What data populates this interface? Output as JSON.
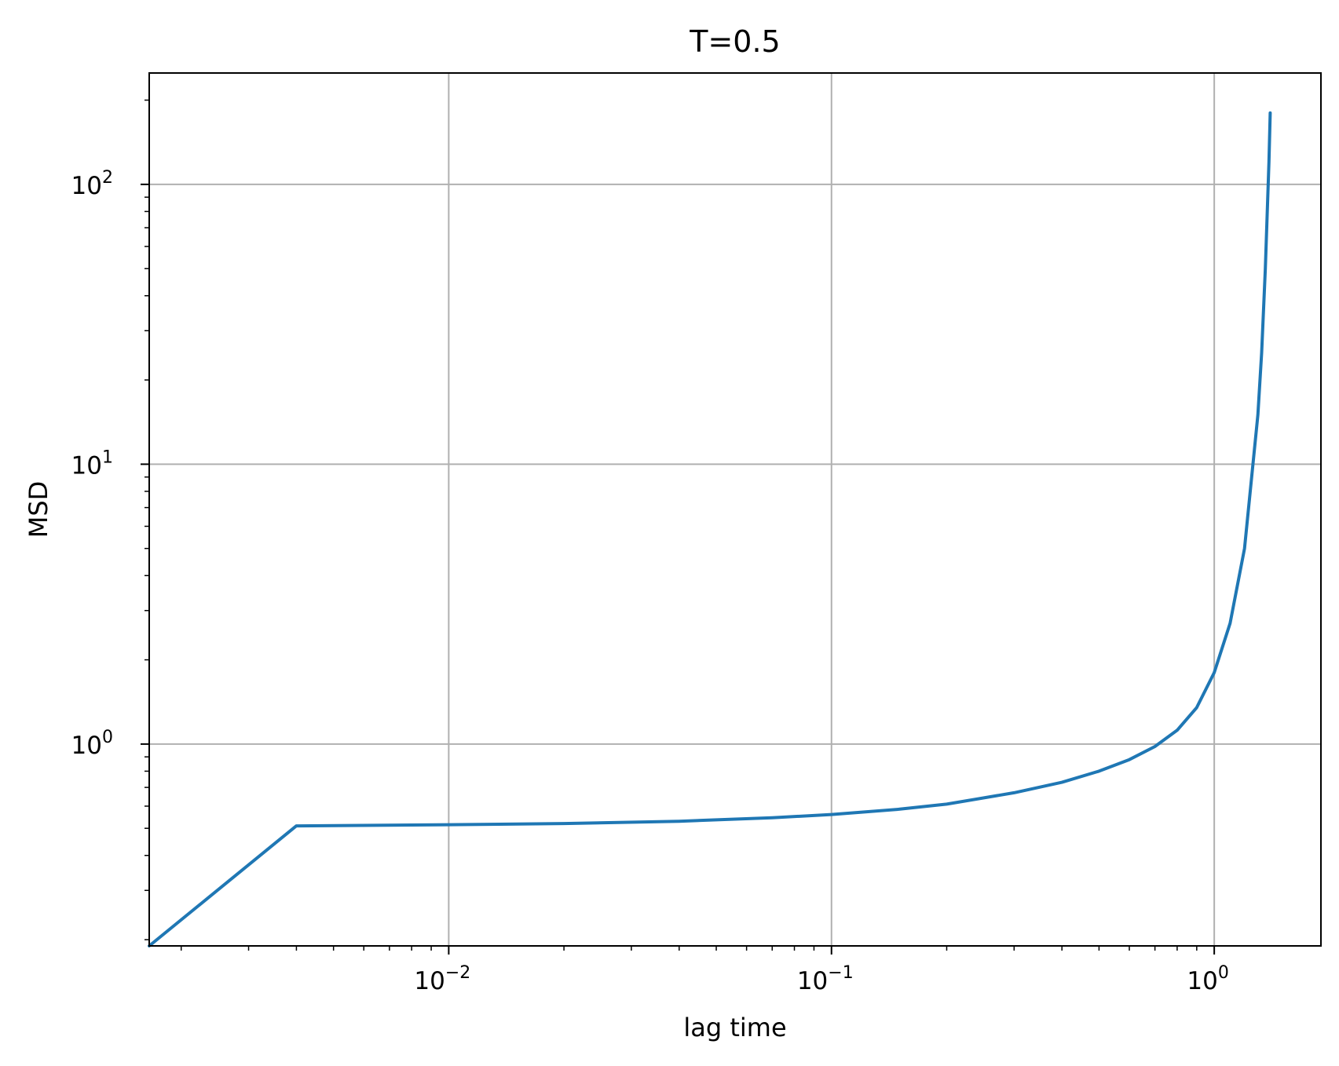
{
  "chart_data": {
    "type": "line",
    "title": "T=0.5",
    "xlabel": "lag time",
    "ylabel": "MSD",
    "x_scale": "log",
    "y_scale": "log",
    "xlim": [
      0.00165,
      1.9
    ],
    "ylim": [
      0.19,
      250
    ],
    "grid": true,
    "x_ticks": [
      {
        "value": 0.01,
        "base": "10",
        "exp": "−2"
      },
      {
        "value": 0.1,
        "base": "10",
        "exp": "−1"
      },
      {
        "value": 1,
        "base": "10",
        "exp": "0"
      }
    ],
    "y_ticks": [
      {
        "value": 1,
        "base": "10",
        "exp": "0"
      },
      {
        "value": 10,
        "base": "10",
        "exp": "1"
      },
      {
        "value": 100,
        "base": "10",
        "exp": "2"
      }
    ],
    "series": [
      {
        "color": "#1f77b4",
        "x": [
          0.00165,
          0.004,
          0.01,
          0.02,
          0.04,
          0.07,
          0.1,
          0.15,
          0.2,
          0.3,
          0.4,
          0.5,
          0.6,
          0.7,
          0.8,
          0.9,
          1.0,
          1.1,
          1.2,
          1.3,
          1.33,
          1.36,
          1.39,
          1.4
        ],
        "y": [
          0.19,
          0.51,
          0.515,
          0.52,
          0.53,
          0.545,
          0.56,
          0.585,
          0.61,
          0.67,
          0.73,
          0.8,
          0.88,
          0.98,
          1.12,
          1.35,
          1.8,
          2.7,
          5.0,
          15,
          25,
          50,
          120,
          180
        ]
      }
    ]
  }
}
